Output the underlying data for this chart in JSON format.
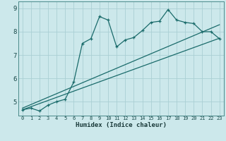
{
  "xlabel": "Humidex (Indice chaleur)",
  "bg_color": "#cce8eb",
  "grid_color": "#aacfd4",
  "line_color": "#1a6b6b",
  "xlim": [
    -0.5,
    23.5
  ],
  "ylim": [
    4.4,
    9.3
  ],
  "yticks": [
    5,
    6,
    7,
    8,
    9
  ],
  "xticks": [
    0,
    1,
    2,
    3,
    4,
    5,
    6,
    7,
    8,
    9,
    10,
    11,
    12,
    13,
    14,
    15,
    16,
    17,
    18,
    19,
    20,
    21,
    22,
    23
  ],
  "series1_x": [
    0,
    1,
    2,
    3,
    4,
    5,
    6,
    7,
    8,
    9,
    10,
    11,
    12,
    13,
    14,
    15,
    16,
    17,
    18,
    19,
    20,
    21,
    22,
    23
  ],
  "series1_y": [
    4.65,
    4.72,
    4.6,
    4.85,
    5.0,
    5.1,
    5.85,
    7.5,
    7.7,
    8.65,
    8.5,
    7.35,
    7.65,
    7.75,
    8.05,
    8.4,
    8.45,
    8.95,
    8.5,
    8.4,
    8.35,
    8.0,
    8.0,
    7.7
  ],
  "series2_x": [
    0,
    23
  ],
  "series2_y": [
    4.72,
    8.3
  ],
  "series3_x": [
    0,
    23
  ],
  "series3_y": [
    4.65,
    7.72
  ]
}
